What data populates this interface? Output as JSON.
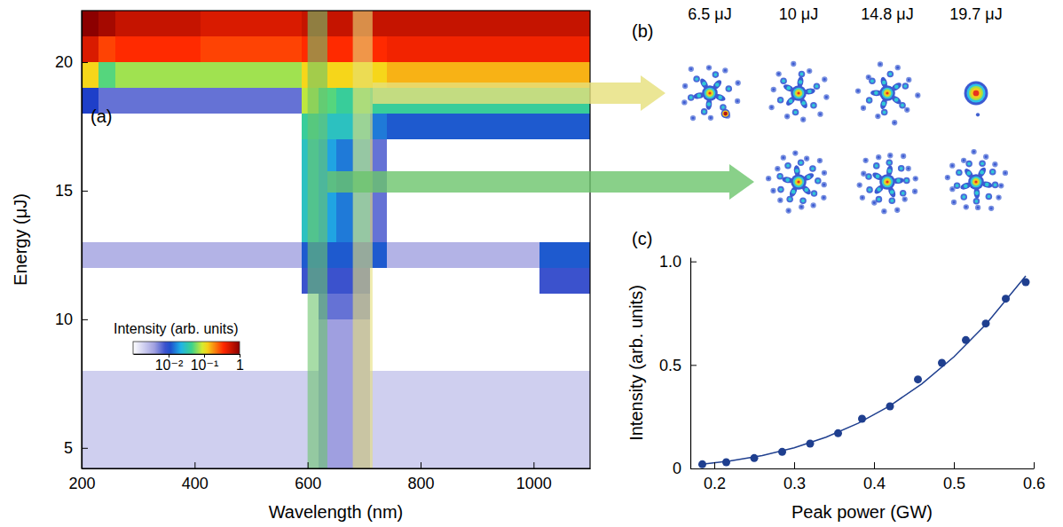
{
  "chart_data": [
    {
      "type": "heatmap",
      "label": "(a)",
      "x_label": "Wavelength (nm)",
      "y_label": "Energy (μJ)",
      "x": [
        215,
        245,
        275,
        305,
        335,
        365,
        395,
        425,
        455,
        485,
        515,
        545,
        575,
        605,
        635,
        665,
        695,
        725,
        755,
        785,
        815,
        845,
        875,
        905,
        935,
        965,
        995,
        1025,
        1055,
        1085
      ],
      "y": [
        4.5,
        5.5,
        6.5,
        7.5,
        8.5,
        9.5,
        10.5,
        11.5,
        12.5,
        13.5,
        14.5,
        15.5,
        16.5,
        17.5,
        18.5,
        19.5,
        20.5,
        21.5
      ],
      "values": [
        [
          0.002,
          0.002,
          0.002,
          0.002,
          0.002,
          0.002,
          0.002,
          0.002,
          0.002,
          0.002,
          0.002,
          0.002,
          0.002,
          0.002,
          0.004,
          0.004,
          0.004,
          0.002,
          0.002,
          0.002,
          0.002,
          0.002,
          0.002,
          0.002,
          0.002,
          0.002,
          0.002,
          0.002,
          0.002,
          0.002
        ],
        [
          0.002,
          0.002,
          0.002,
          0.002,
          0.002,
          0.002,
          0.002,
          0.002,
          0.002,
          0.002,
          0.002,
          0.002,
          0.002,
          0.002,
          0.004,
          0.004,
          0.004,
          0.002,
          0.002,
          0.002,
          0.002,
          0.002,
          0.002,
          0.002,
          0.002,
          0.002,
          0.002,
          0.002,
          0.002,
          0.002
        ],
        [
          0.002,
          0.002,
          0.002,
          0.002,
          0.002,
          0.002,
          0.002,
          0.002,
          0.002,
          0.002,
          0.002,
          0.002,
          0.002,
          0.002,
          0.004,
          0.004,
          0.004,
          0.002,
          0.002,
          0.002,
          0.002,
          0.002,
          0.002,
          0.002,
          0.002,
          0.002,
          0.002,
          0.002,
          0.002,
          0.002
        ],
        [
          0.002,
          0.002,
          0.002,
          0.002,
          0.002,
          0.002,
          0.002,
          0.002,
          0.002,
          0.002,
          0.002,
          0.002,
          0.002,
          0.002,
          0.004,
          0.004,
          0.004,
          0.002,
          0.002,
          0.002,
          0.002,
          0.002,
          0.002,
          0.002,
          0.002,
          0.002,
          0.002,
          0.002,
          0.002,
          0.002
        ],
        [
          0.001,
          0.001,
          0.001,
          0.001,
          0.001,
          0.001,
          0.001,
          0.001,
          0.001,
          0.001,
          0.001,
          0.001,
          0.001,
          0.001,
          0.004,
          0.004,
          0.004,
          0.001,
          0.001,
          0.001,
          0.001,
          0.001,
          0.001,
          0.001,
          0.001,
          0.001,
          0.001,
          0.001,
          0.001,
          0.001
        ],
        [
          0.001,
          0.001,
          0.001,
          0.001,
          0.001,
          0.001,
          0.001,
          0.001,
          0.001,
          0.001,
          0.001,
          0.001,
          0.001,
          0.001,
          0.004,
          0.004,
          0.004,
          0.001,
          0.001,
          0.001,
          0.001,
          0.001,
          0.001,
          0.001,
          0.001,
          0.001,
          0.001,
          0.001,
          0.001,
          0.001
        ],
        [
          0.001,
          0.001,
          0.001,
          0.001,
          0.001,
          0.001,
          0.001,
          0.001,
          0.001,
          0.001,
          0.001,
          0.001,
          0.001,
          0.001,
          0.006,
          0.006,
          0.006,
          0.001,
          0.001,
          0.001,
          0.001,
          0.001,
          0.001,
          0.001,
          0.001,
          0.001,
          0.001,
          0.001,
          0.001,
          0.001
        ],
        [
          0.001,
          0.001,
          0.001,
          0.001,
          0.001,
          0.001,
          0.001,
          0.001,
          0.001,
          0.001,
          0.001,
          0.001,
          0.001,
          0.008,
          0.008,
          0.008,
          0.008,
          0.001,
          0.001,
          0.001,
          0.001,
          0.001,
          0.001,
          0.001,
          0.001,
          0.001,
          0.001,
          0.008,
          0.008,
          0.008
        ],
        [
          0.003,
          0.003,
          0.003,
          0.003,
          0.003,
          0.003,
          0.003,
          0.003,
          0.003,
          0.003,
          0.003,
          0.003,
          0.003,
          0.012,
          0.012,
          0.012,
          0.012,
          0.012,
          0.003,
          0.003,
          0.003,
          0.003,
          0.003,
          0.003,
          0.003,
          0.003,
          0.003,
          0.012,
          0.012,
          0.012
        ],
        [
          0.001,
          0.001,
          0.001,
          0.001,
          0.001,
          0.001,
          0.001,
          0.001,
          0.001,
          0.001,
          0.001,
          0.001,
          0.001,
          0.03,
          0.02,
          0.015,
          0.02,
          0.006,
          0.001,
          0.001,
          0.001,
          0.001,
          0.001,
          0.001,
          0.001,
          0.001,
          0.001,
          0.001,
          0.001,
          0.001
        ],
        [
          0.001,
          0.001,
          0.001,
          0.001,
          0.001,
          0.001,
          0.001,
          0.001,
          0.001,
          0.001,
          0.001,
          0.001,
          0.001,
          0.03,
          0.02,
          0.015,
          0.02,
          0.006,
          0.001,
          0.001,
          0.001,
          0.001,
          0.001,
          0.001,
          0.001,
          0.001,
          0.001,
          0.001,
          0.001,
          0.001
        ],
        [
          0.001,
          0.001,
          0.001,
          0.001,
          0.001,
          0.001,
          0.001,
          0.001,
          0.001,
          0.001,
          0.001,
          0.001,
          0.001,
          0.03,
          0.02,
          0.015,
          0.02,
          0.006,
          0.001,
          0.001,
          0.001,
          0.001,
          0.001,
          0.001,
          0.001,
          0.001,
          0.001,
          0.001,
          0.001,
          0.001
        ],
        [
          0.001,
          0.001,
          0.001,
          0.001,
          0.001,
          0.001,
          0.001,
          0.001,
          0.001,
          0.001,
          0.001,
          0.001,
          0.001,
          0.03,
          0.02,
          0.015,
          0.02,
          0.006,
          0.001,
          0.001,
          0.001,
          0.001,
          0.001,
          0.001,
          0.001,
          0.001,
          0.001,
          0.001,
          0.001,
          0.001
        ],
        [
          0.001,
          0.001,
          0.001,
          0.001,
          0.001,
          0.001,
          0.001,
          0.001,
          0.001,
          0.001,
          0.001,
          0.001,
          0.001,
          0.04,
          0.03,
          0.03,
          0.03,
          0.015,
          0.012,
          0.012,
          0.012,
          0.012,
          0.012,
          0.012,
          0.012,
          0.012,
          0.012,
          0.012,
          0.012,
          0.012
        ],
        [
          0.01,
          0.006,
          0.006,
          0.006,
          0.006,
          0.006,
          0.006,
          0.006,
          0.006,
          0.006,
          0.006,
          0.006,
          0.006,
          0.08,
          0.05,
          0.04,
          0.05,
          0.04,
          0.04,
          0.04,
          0.04,
          0.04,
          0.04,
          0.04,
          0.04,
          0.04,
          0.04,
          0.04,
          0.04,
          0.04
        ],
        [
          0.12,
          0.05,
          0.07,
          0.07,
          0.07,
          0.07,
          0.07,
          0.07,
          0.07,
          0.07,
          0.07,
          0.07,
          0.07,
          0.12,
          0.12,
          0.12,
          0.12,
          0.12,
          0.15,
          0.15,
          0.15,
          0.15,
          0.15,
          0.15,
          0.15,
          0.15,
          0.15,
          0.15,
          0.15,
          0.15
        ],
        [
          0.5,
          0.3,
          0.35,
          0.35,
          0.35,
          0.35,
          0.35,
          0.3,
          0.3,
          0.3,
          0.3,
          0.3,
          0.3,
          0.35,
          0.35,
          0.35,
          0.35,
          0.35,
          0.4,
          0.4,
          0.4,
          0.4,
          0.4,
          0.4,
          0.4,
          0.4,
          0.4,
          0.4,
          0.4,
          0.4
        ],
        [
          1,
          0.8,
          0.6,
          0.6,
          0.6,
          0.6,
          0.6,
          0.5,
          0.5,
          0.5,
          0.5,
          0.5,
          0.5,
          0.6,
          0.6,
          0.6,
          0.6,
          0.6,
          0.6,
          0.6,
          0.6,
          0.6,
          0.6,
          0.6,
          0.6,
          0.6,
          0.6,
          0.6,
          0.6,
          0.6
        ]
      ],
      "xlim": [
        200,
        1100
      ],
      "ylim": [
        4.2,
        22
      ],
      "xticks": [
        200,
        400,
        600,
        800,
        1000
      ],
      "yticks": [
        5,
        10,
        15,
        20
      ],
      "colorbar": {
        "title": "Intensity (arb. units)",
        "range": [
          0.001,
          1
        ],
        "ticks": [
          {
            "value": 0.01,
            "label": "10⁻²"
          },
          {
            "value": 0.1,
            "label": "10⁻¹"
          },
          1
        ]
      },
      "bands": [
        {
          "range": [
            600,
            635
          ],
          "color": "#6cc46c"
        },
        {
          "range": [
            680,
            715
          ],
          "color": "#e6e07a"
        }
      ]
    },
    {
      "type": "image",
      "label": "(b)",
      "columns": [
        "6.5 μJ",
        "10 μJ",
        "14.8 μJ",
        "19.7 μJ"
      ]
    },
    {
      "type": "scatter",
      "label": "(c)",
      "x_label": "Peak power (GW)",
      "y_label": "Intensity (arb. units)",
      "xlim": [
        0.17,
        0.6
      ],
      "ylim": [
        0,
        1.02
      ],
      "xticks": [
        0.2,
        0.3,
        0.4,
        0.5,
        0.6
      ],
      "yticks": [
        0,
        0.5,
        {
          "value": 1,
          "label": "1.0"
        }
      ],
      "series": [
        {
          "type": "scatter",
          "marker": "circle",
          "color": "#1f3f8f",
          "x": [
            0.185,
            0.215,
            0.25,
            0.285,
            0.32,
            0.355,
            0.385,
            0.42,
            0.455,
            0.485,
            0.515,
            0.54,
            0.565,
            0.59
          ],
          "values": [
            0.02,
            0.03,
            0.05,
            0.08,
            0.12,
            0.17,
            0.24,
            0.3,
            0.43,
            0.51,
            0.62,
            0.7,
            0.82,
            0.9
          ]
        },
        {
          "type": "line",
          "line_style": "solid",
          "color": "#1f3f8f",
          "x": [
            0.18,
            0.22,
            0.26,
            0.3,
            0.34,
            0.38,
            0.42,
            0.46,
            0.5,
            0.54,
            0.59
          ],
          "values": [
            0.0185,
            0.036,
            0.062,
            0.1,
            0.151,
            0.218,
            0.303,
            0.409,
            0.539,
            0.695,
            0.93
          ]
        }
      ]
    }
  ]
}
